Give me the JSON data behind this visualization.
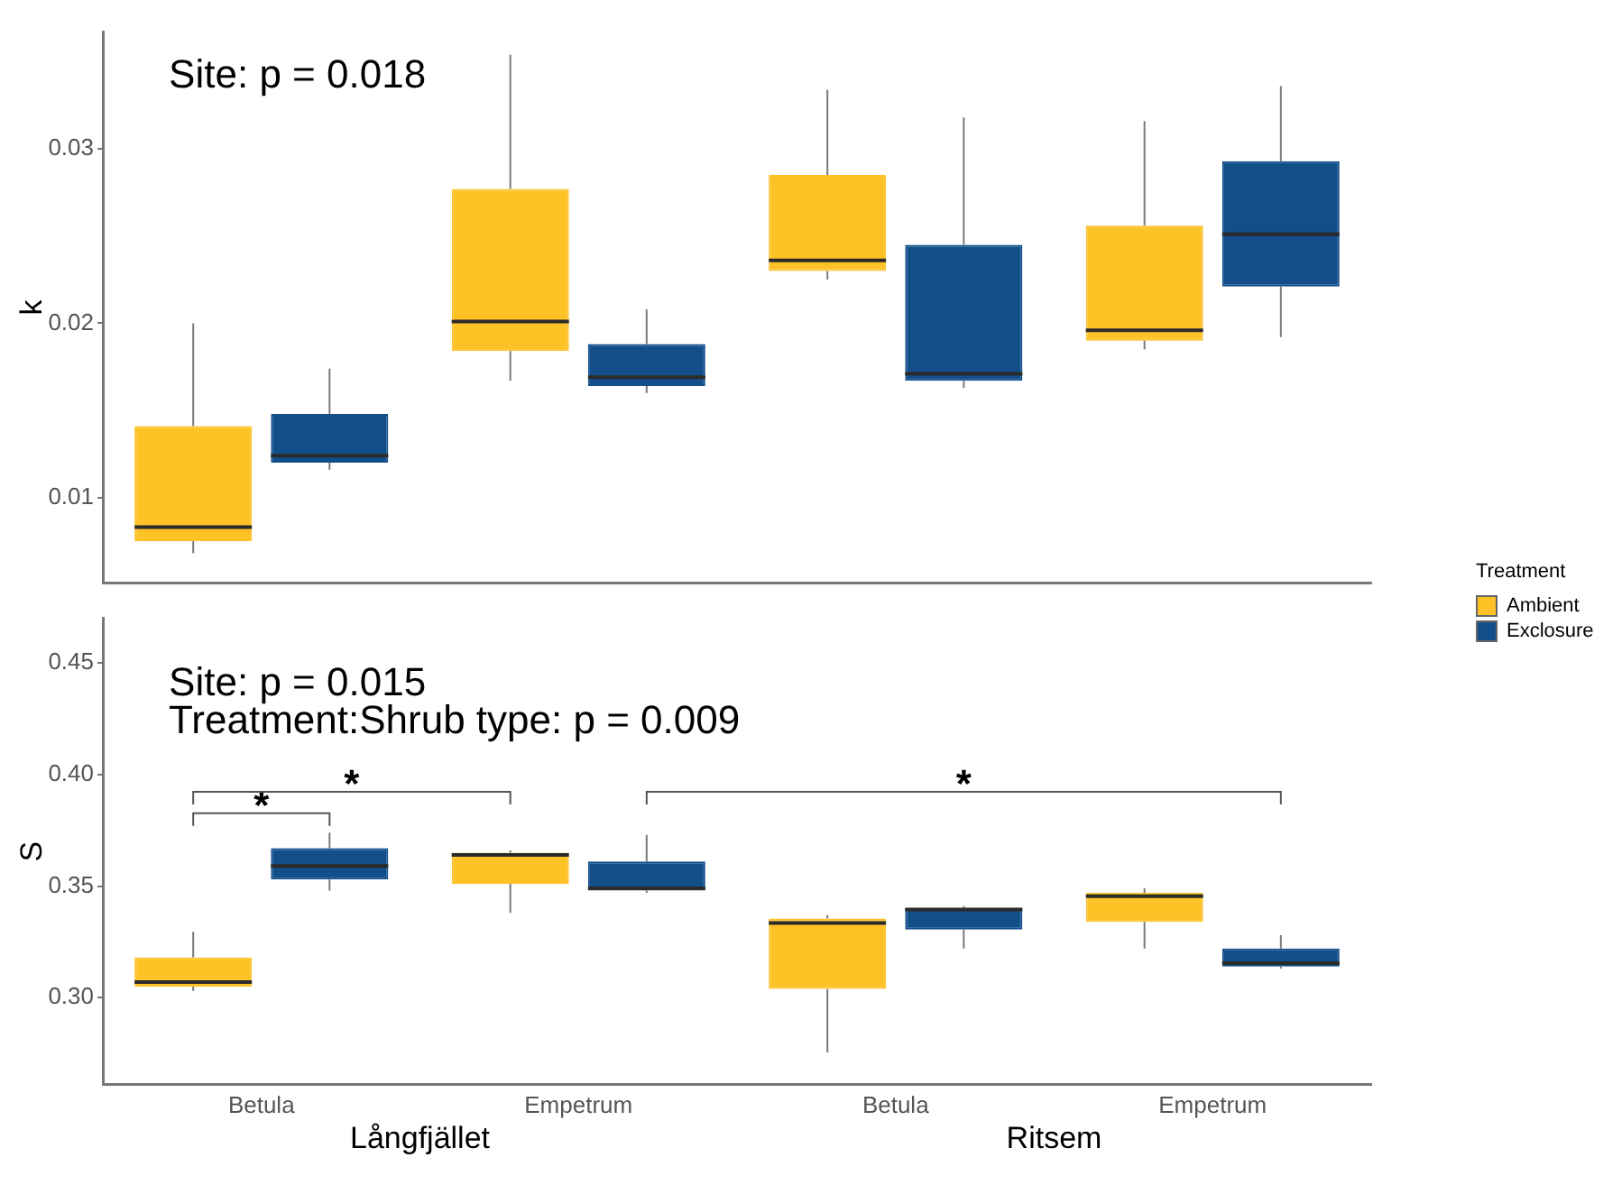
{
  "chart_data": [
    {
      "type": "box",
      "ylabel": "k",
      "categories": [
        null,
        null,
        null,
        null
      ],
      "tick_labels": "y",
      "grid": false,
      "ylim": [
        0.0051,
        0.0367
      ],
      "yticks": [
        0.01,
        0.02,
        0.03
      ],
      "annotations": [
        "Site: p = 0.018"
      ],
      "series": [
        {
          "color": "#fec126",
          "boxes": [
            {
              "low": 0.0068,
              "q1": 0.0075,
              "median": 0.0083,
              "q3": 0.0141,
              "high": 0.02
            },
            {
              "low": 0.0167,
              "q1": 0.0184,
              "median": 0.0201,
              "q3": 0.0277,
              "high": 0.0354
            },
            {
              "low": 0.0225,
              "q1": 0.023,
              "median": 0.0236,
              "q3": 0.0285,
              "high": 0.0334
            },
            {
              "low": 0.0185,
              "q1": 0.019,
              "median": 0.0196,
              "q3": 0.0256,
              "high": 0.0316
            }
          ]
        },
        {
          "color": "#114e8a",
          "boxes": [
            {
              "low": 0.0116,
              "q1": 0.012,
              "median": 0.0124,
              "q3": 0.0148,
              "high": 0.0174
            },
            {
              "low": 0.016,
              "q1": 0.0164,
              "median": 0.0169,
              "q3": 0.0188,
              "high": 0.0208
            },
            {
              "low": 0.0163,
              "q1": 0.0167,
              "median": 0.0171,
              "q3": 0.0245,
              "high": 0.0318
            },
            {
              "low": 0.0192,
              "q1": 0.0221,
              "median": 0.0251,
              "q3": 0.0293,
              "high": 0.0336
            }
          ]
        }
      ]
    },
    {
      "type": "box",
      "ylabel": "S",
      "categories": [
        "Betula",
        "Empetrum",
        "Betula",
        "Empetrum"
      ],
      "grid": false,
      "ylim": [
        0.261,
        0.47
      ],
      "yticks": [
        {
          "value": 0.3,
          "label": "0.30"
        },
        0.35,
        {
          "value": 0.4,
          "label": "0.40"
        },
        0.45
      ],
      "legend": "right",
      "legend_title": "Treatment",
      "annotations": [
        "Site: p = 0.015",
        "Treatment:Shrub type: p = 0.009",
        "*",
        "*",
        "*",
        "Långfjället",
        "Ritsem"
      ],
      "series": [
        {
          "name": "Ambient",
          "color": "#fec126",
          "boxes": [
            {
              "low": 0.303,
              "q1": 0.305,
              "median": 0.307,
              "q3": 0.318,
              "high": 0.3295
            },
            {
              "low": 0.338,
              "q1": 0.351,
              "median": 0.364,
              "q3": 0.365,
              "high": 0.366
            },
            {
              "low": 0.2755,
              "q1": 0.304,
              "median": 0.3335,
              "q3": 0.3355,
              "high": 0.337
            },
            {
              "low": 0.322,
              "q1": 0.334,
              "median": 0.3455,
              "q3": 0.347,
              "high": 0.349
            }
          ]
        },
        {
          "name": "Exclosure",
          "color": "#114e8a",
          "boxes": [
            {
              "low": 0.348,
              "q1": 0.353,
              "median": 0.359,
              "q3": 0.367,
              "high": 0.374
            },
            {
              "low": 0.347,
              "q1": 0.348,
              "median": 0.349,
              "q3": 0.361,
              "high": 0.373
            },
            {
              "low": 0.322,
              "q1": 0.3305,
              "median": 0.3395,
              "q3": 0.34,
              "high": 0.341
            },
            {
              "low": 0.313,
              "q1": 0.314,
              "median": 0.3155,
              "q3": 0.322,
              "high": 0.328
            }
          ]
        }
      ]
    }
  ]
}
